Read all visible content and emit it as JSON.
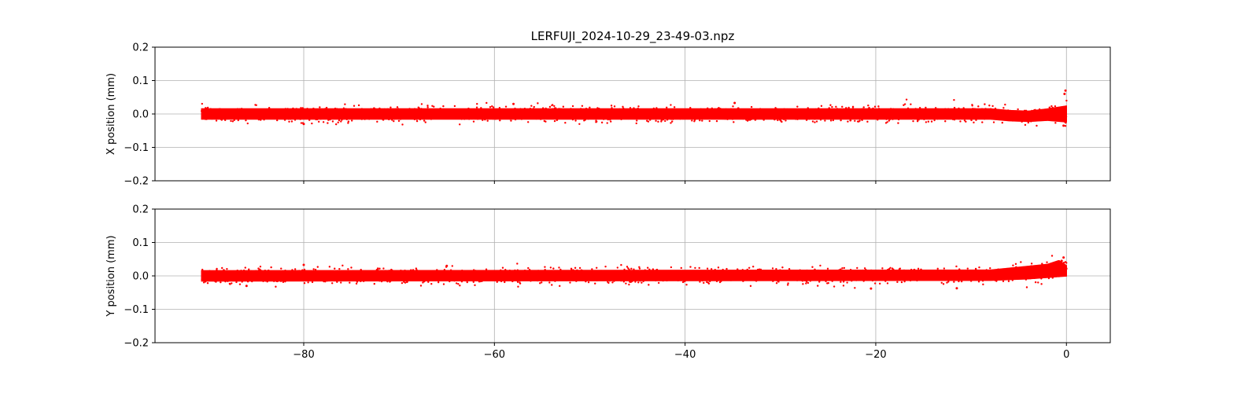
{
  "chart_data": {
    "type": "scatter",
    "title": "LERFUJI_2024-10-29_23-49-03.npz",
    "grid": true,
    "color": "#ff0000",
    "sharex": true,
    "xlim": [
      -95.6,
      4.6
    ],
    "xticks": [
      -80,
      -60,
      -40,
      -20,
      0
    ],
    "xtick_labels": [
      "−80",
      "−60",
      "−40",
      "−20",
      "0"
    ],
    "x_range": [
      -90.8,
      0
    ],
    "subplots": [
      {
        "ylabel": "X position (mm)",
        "ylim": [
          -0.2,
          0.2
        ],
        "yticks": [
          -0.2,
          -0.1,
          0.0,
          0.1,
          0.2
        ],
        "ytick_labels": [
          "−0.2",
          "−0.1",
          "0.0",
          "0.1",
          "0.2"
        ],
        "band": [
          {
            "x": -90.8,
            "center": 0.0,
            "half_width": 0.02
          },
          {
            "x": -8.0,
            "center": 0.0,
            "half_width": 0.02
          },
          {
            "x": -6.0,
            "center": -0.005,
            "half_width": 0.02
          },
          {
            "x": -4.0,
            "center": -0.007,
            "half_width": 0.02
          },
          {
            "x": -2.0,
            "center": -0.002,
            "half_width": 0.022
          },
          {
            "x": 0.0,
            "center": 0.0,
            "half_width": 0.03
          }
        ],
        "outliers": [
          {
            "x": -80.0,
            "y": -0.03
          },
          {
            "x": -58.0,
            "y": 0.03
          },
          {
            "x": -34.8,
            "y": 0.033
          },
          {
            "x": -0.1,
            "y": 0.07
          },
          {
            "x": -0.2,
            "y": 0.06
          },
          {
            "x": -0.3,
            "y": -0.035
          }
        ]
      },
      {
        "ylabel": "Y position (mm)",
        "ylim": [
          -0.2,
          0.2
        ],
        "yticks": [
          -0.2,
          -0.1,
          0.0,
          0.1,
          0.2
        ],
        "ytick_labels": [
          "−0.2",
          "−0.1",
          "0.0",
          "0.1",
          "0.2"
        ],
        "band": [
          {
            "x": -90.8,
            "center": 0.0,
            "half_width": 0.02
          },
          {
            "x": -8.0,
            "center": 0.002,
            "half_width": 0.02
          },
          {
            "x": -6.0,
            "center": 0.006,
            "half_width": 0.022
          },
          {
            "x": -4.0,
            "center": 0.01,
            "half_width": 0.024
          },
          {
            "x": -2.0,
            "center": 0.015,
            "half_width": 0.025
          },
          {
            "x": -0.8,
            "center": 0.022,
            "half_width": 0.03
          },
          {
            "x": 0.0,
            "center": 0.015,
            "half_width": 0.02
          }
        ],
        "outliers": [
          {
            "x": -80.0,
            "y": 0.033
          },
          {
            "x": -65.0,
            "y": 0.03
          },
          {
            "x": -20.5,
            "y": -0.038
          },
          {
            "x": -11.5,
            "y": -0.037
          },
          {
            "x": -0.3,
            "y": 0.055
          },
          {
            "x": -0.5,
            "y": 0.045
          },
          {
            "x": -86.0,
            "y": -0.03
          }
        ]
      }
    ]
  }
}
